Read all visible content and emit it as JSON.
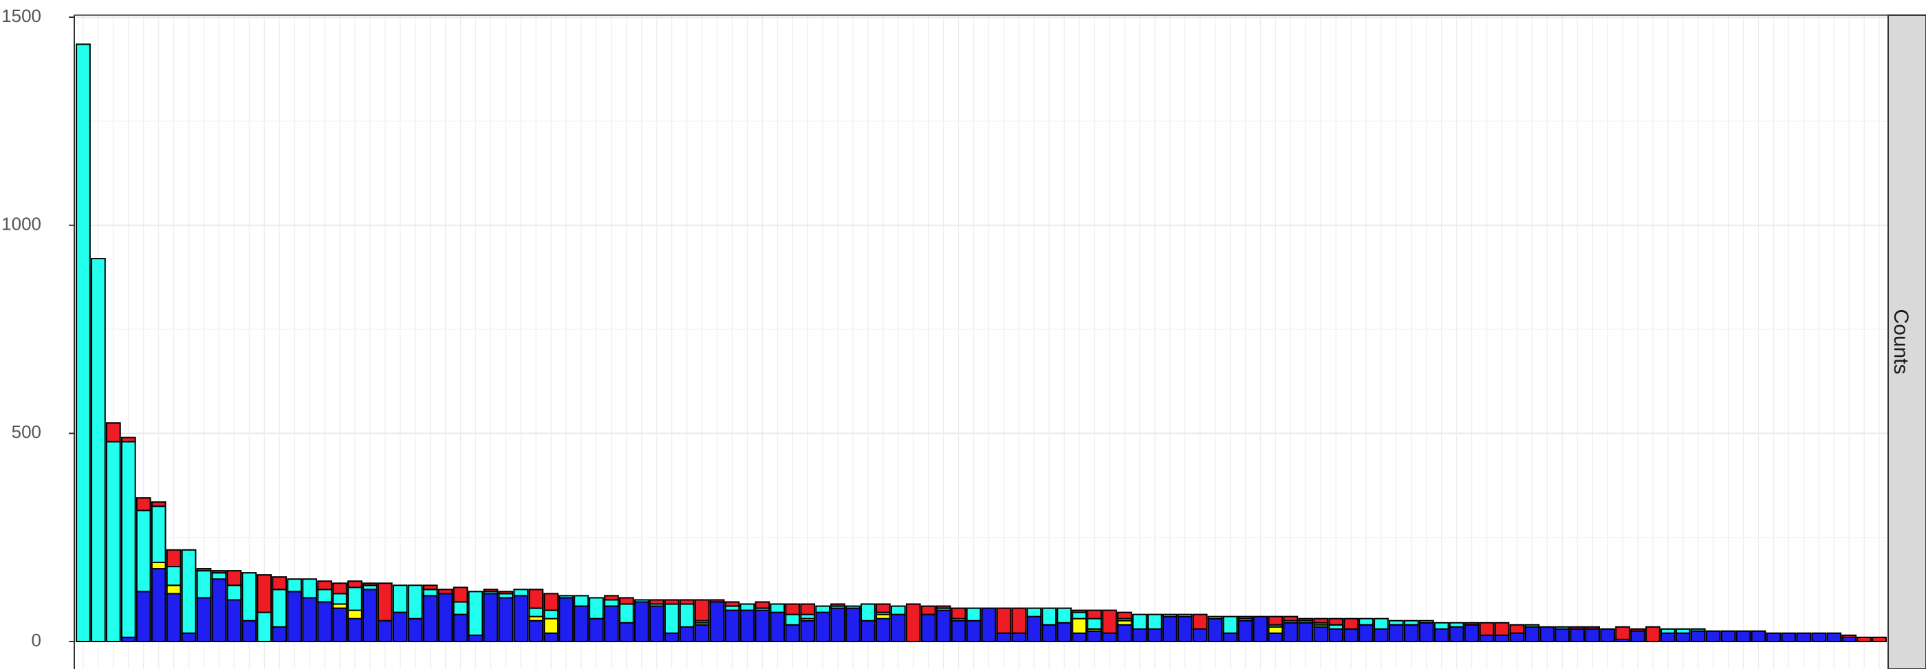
{
  "chart_data": {
    "type": "bar",
    "stacked": true,
    "n_bars": 120,
    "ylim": [
      0,
      1500
    ],
    "y_ticks": [
      {
        "value": 0,
        "label": "0"
      },
      {
        "value": 500,
        "label": "500"
      },
      {
        "value": 1000,
        "label": "1000"
      },
      {
        "value": 1500,
        "label": "1500"
      }
    ],
    "grid": true,
    "facet_strip_label": "Counts",
    "segment_colors": {
      "blue": "#1f1ff0",
      "yellow": "#ffff00",
      "cyan": "#22ffee",
      "red": "#ee1c24"
    },
    "stack_order": [
      "blue",
      "yellow",
      "cyan",
      "red"
    ],
    "bars": [
      [
        0,
        0,
        1435,
        0
      ],
      [
        0,
        0,
        920,
        0
      ],
      [
        0,
        0,
        480,
        45
      ],
      [
        10,
        0,
        470,
        10
      ],
      [
        120,
        0,
        195,
        30
      ],
      [
        175,
        15,
        135,
        10
      ],
      [
        115,
        20,
        45,
        40
      ],
      [
        20,
        0,
        200,
        0
      ],
      [
        105,
        0,
        65,
        5
      ],
      [
        150,
        0,
        15,
        5
      ],
      [
        100,
        0,
        35,
        35
      ],
      [
        50,
        0,
        115,
        0
      ],
      [
        0,
        0,
        70,
        90
      ],
      [
        35,
        0,
        90,
        30
      ],
      [
        120,
        0,
        30,
        0
      ],
      [
        105,
        0,
        45,
        0
      ],
      [
        95,
        0,
        30,
        20
      ],
      [
        80,
        10,
        25,
        25
      ],
      [
        55,
        20,
        55,
        15
      ],
      [
        125,
        0,
        10,
        5
      ],
      [
        50,
        0,
        0,
        90
      ],
      [
        70,
        0,
        65,
        0
      ],
      [
        55,
        0,
        80,
        0
      ],
      [
        110,
        0,
        15,
        10
      ],
      [
        115,
        0,
        0,
        10
      ],
      [
        65,
        0,
        30,
        35
      ],
      [
        15,
        0,
        105,
        0
      ],
      [
        115,
        0,
        5,
        5
      ],
      [
        105,
        0,
        10,
        5
      ],
      [
        110,
        0,
        15,
        0
      ],
      [
        50,
        10,
        20,
        45
      ],
      [
        20,
        35,
        20,
        40
      ],
      [
        105,
        0,
        5,
        0
      ],
      [
        85,
        0,
        25,
        0
      ],
      [
        55,
        0,
        50,
        0
      ],
      [
        85,
        0,
        15,
        10
      ],
      [
        45,
        0,
        45,
        15
      ],
      [
        95,
        0,
        5,
        0
      ],
      [
        85,
        0,
        5,
        10
      ],
      [
        20,
        0,
        70,
        10
      ],
      [
        35,
        0,
        55,
        10
      ],
      [
        40,
        5,
        5,
        50
      ],
      [
        95,
        0,
        0,
        5
      ],
      [
        75,
        0,
        10,
        10
      ],
      [
        75,
        0,
        15,
        0
      ],
      [
        75,
        0,
        5,
        15
      ],
      [
        70,
        0,
        20,
        0
      ],
      [
        40,
        0,
        25,
        25
      ],
      [
        50,
        5,
        10,
        25
      ],
      [
        70,
        0,
        15,
        0
      ],
      [
        80,
        0,
        5,
        5
      ],
      [
        80,
        0,
        5,
        0
      ],
      [
        50,
        0,
        40,
        0
      ],
      [
        55,
        10,
        5,
        20
      ],
      [
        65,
        0,
        20,
        0
      ],
      [
        0,
        0,
        0,
        90
      ],
      [
        65,
        0,
        0,
        20
      ],
      [
        75,
        0,
        5,
        5
      ],
      [
        50,
        0,
        5,
        25
      ],
      [
        50,
        0,
        30,
        0
      ],
      [
        80,
        0,
        0,
        0
      ],
      [
        20,
        0,
        0,
        60
      ],
      [
        20,
        0,
        0,
        60
      ],
      [
        60,
        0,
        20,
        0
      ],
      [
        40,
        0,
        40,
        0
      ],
      [
        45,
        0,
        35,
        0
      ],
      [
        20,
        35,
        15,
        5
      ],
      [
        25,
        5,
        25,
        20
      ],
      [
        20,
        0,
        0,
        55
      ],
      [
        40,
        10,
        5,
        15
      ],
      [
        30,
        0,
        35,
        0
      ],
      [
        30,
        0,
        35,
        0
      ],
      [
        60,
        0,
        5,
        0
      ],
      [
        60,
        0,
        5,
        0
      ],
      [
        30,
        0,
        0,
        35
      ],
      [
        55,
        0,
        5,
        0
      ],
      [
        20,
        0,
        40,
        0
      ],
      [
        50,
        0,
        5,
        5
      ],
      [
        60,
        0,
        0,
        0
      ],
      [
        20,
        15,
        5,
        20
      ],
      [
        45,
        0,
        5,
        10
      ],
      [
        45,
        0,
        5,
        5
      ],
      [
        35,
        5,
        5,
        10
      ],
      [
        30,
        0,
        10,
        15
      ],
      [
        30,
        0,
        0,
        25
      ],
      [
        40,
        0,
        15,
        0
      ],
      [
        30,
        0,
        25,
        0
      ],
      [
        40,
        0,
        10,
        0
      ],
      [
        40,
        0,
        10,
        0
      ],
      [
        45,
        0,
        5,
        0
      ],
      [
        30,
        0,
        15,
        0
      ],
      [
        35,
        0,
        10,
        0
      ],
      [
        40,
        0,
        0,
        5
      ],
      [
        15,
        0,
        0,
        30
      ],
      [
        15,
        0,
        0,
        30
      ],
      [
        20,
        0,
        0,
        20
      ],
      [
        35,
        0,
        5,
        0
      ],
      [
        35,
        0,
        0,
        0
      ],
      [
        30,
        0,
        5,
        0
      ],
      [
        30,
        0,
        0,
        5
      ],
      [
        30,
        0,
        0,
        5
      ],
      [
        30,
        0,
        0,
        0
      ],
      [
        5,
        0,
        0,
        30
      ],
      [
        25,
        0,
        0,
        5
      ],
      [
        0,
        0,
        0,
        35
      ],
      [
        20,
        0,
        10,
        0
      ],
      [
        20,
        0,
        10,
        0
      ],
      [
        25,
        0,
        5,
        0
      ],
      [
        25,
        0,
        0,
        0
      ],
      [
        25,
        0,
        0,
        0
      ],
      [
        25,
        0,
        0,
        0
      ],
      [
        25,
        0,
        0,
        0
      ],
      [
        20,
        0,
        0,
        0
      ],
      [
        20,
        0,
        0,
        0
      ],
      [
        20,
        0,
        0,
        0
      ],
      [
        20,
        0,
        0,
        0
      ],
      [
        20,
        0,
        0,
        0
      ],
      [
        10,
        0,
        0,
        5
      ],
      [
        0,
        0,
        0,
        10
      ],
      [
        0,
        0,
        0,
        10
      ]
    ]
  }
}
